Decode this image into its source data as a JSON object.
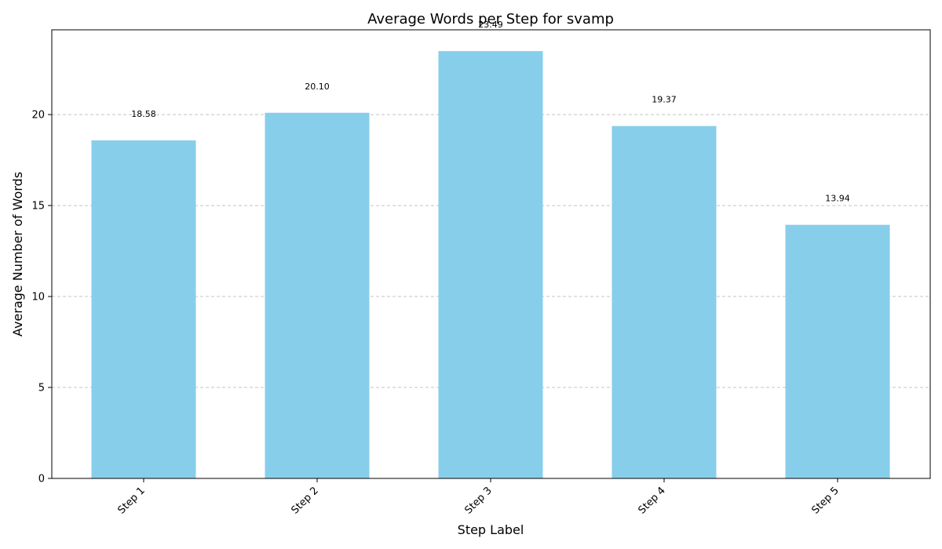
{
  "chart_data": {
    "type": "bar",
    "title": "Average Words per Step for svamp",
    "xlabel": "Step Label",
    "ylabel": "Average Number of Words",
    "categories": [
      "Step 1",
      "Step 2",
      "Step 3",
      "Step 4",
      "Step 5"
    ],
    "values": [
      18.58,
      20.1,
      23.49,
      19.37,
      13.94
    ],
    "value_labels": [
      "18.58",
      "20.10",
      "23.49",
      "19.37",
      "13.94"
    ],
    "y_ticks": [
      0,
      5,
      10,
      15,
      20
    ],
    "y_tick_labels": [
      "0",
      "5",
      "10",
      "15",
      "20"
    ],
    "ylim": [
      0,
      24.66
    ],
    "bar_color": "#87CEEB",
    "grid": "y-dashed",
    "legend": "none"
  }
}
